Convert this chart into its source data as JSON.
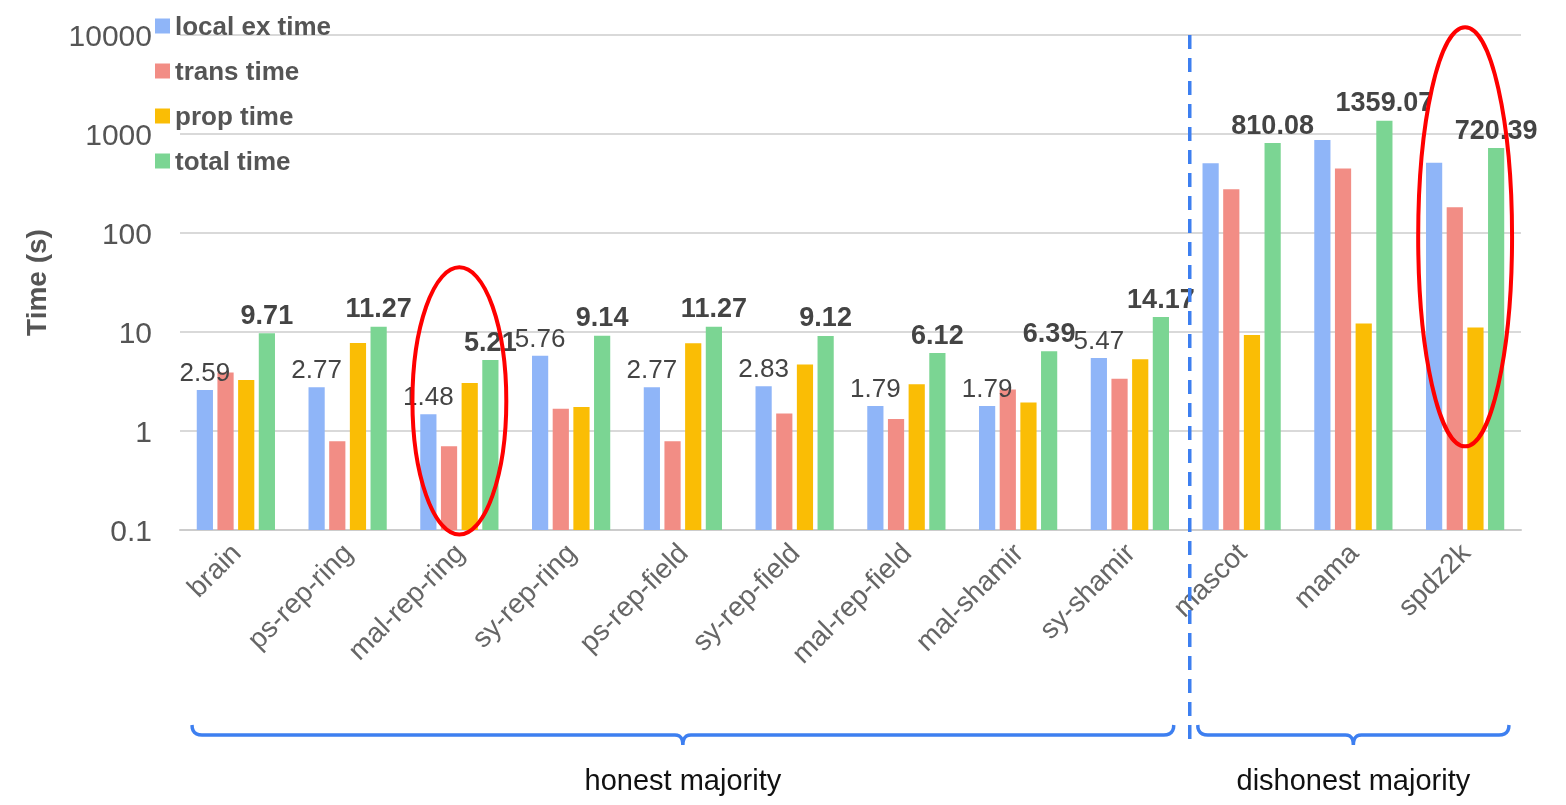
{
  "chart_data": {
    "type": "bar",
    "ylabel": "Time (s)",
    "categories": [
      "brain",
      "ps-rep-ring",
      "mal-rep-ring",
      "sy-rep-ring",
      "ps-rep-field",
      "sy-rep-field",
      "mal-rep-field",
      "mal-shamir",
      "sy-shamir",
      "mascot",
      "mama",
      "spdz2k"
    ],
    "series": [
      {
        "name": "local ex time",
        "color": "#8fb5f8",
        "values": [
          2.59,
          2.77,
          1.48,
          5.76,
          2.77,
          2.83,
          1.79,
          1.79,
          5.47,
          506,
          870,
          512
        ],
        "value_labels": [
          "2.59",
          "2.77",
          "1.48",
          "5.76",
          "2.77",
          "2.83",
          "1.79",
          "1.79",
          "5.47",
          null,
          null,
          null
        ]
      },
      {
        "name": "trans time",
        "color": "#f28d85",
        "values": [
          3.9,
          0.79,
          0.7,
          1.68,
          0.79,
          1.5,
          1.32,
          2.63,
          3.37,
          277,
          447,
          182
        ]
      },
      {
        "name": "prop time",
        "color": "#fabd05",
        "values": [
          3.27,
          7.74,
          3.05,
          1.75,
          7.7,
          4.7,
          2.97,
          1.94,
          5.3,
          9.3,
          12.2,
          11.1
        ]
      },
      {
        "name": "total time",
        "color": "#7bd593",
        "values": [
          9.71,
          11.27,
          5.21,
          9.14,
          11.27,
          9.12,
          6.12,
          6.39,
          14.17,
          810.08,
          1359.07,
          720.39
        ],
        "value_labels": [
          "9.71",
          "11.27",
          "5.21",
          "9.14",
          "11.27",
          "9.12",
          "6.12",
          "6.39",
          "14.17",
          "810.08",
          "1359.07",
          "720.39"
        ]
      }
    ],
    "log": "y",
    "ylim": [
      0.1,
      10000
    ],
    "yticks": [
      0.1,
      1,
      10,
      100,
      1000,
      10000
    ],
    "grid": "y",
    "legend": "top left",
    "annotations": [
      "honest majority",
      "dishonest majority"
    ]
  }
}
